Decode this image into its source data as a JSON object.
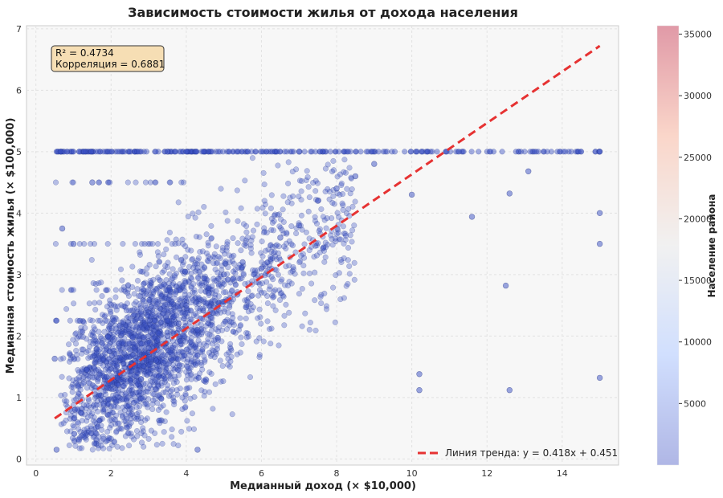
{
  "chart_data": {
    "type": "scatter",
    "title": "Зависимость стоимости жилья от дохода населения",
    "xlabel": "Медианный доход (× $10,000)",
    "ylabel": "Медианная стоимость жилья (× $100,000)",
    "xlim": [
      -0.25,
      15.5
    ],
    "ylim": [
      -0.1,
      7.05
    ],
    "x_ticks": [
      0,
      2,
      4,
      6,
      8,
      10,
      12,
      14
    ],
    "y_ticks": [
      0,
      1,
      2,
      3,
      4,
      5,
      6,
      7
    ],
    "grid": true,
    "stats_box": {
      "r2_text": "R² = 0.4734",
      "corr_text": "Корреляция = 0.6881"
    },
    "trend": {
      "slope": 0.418,
      "intercept": 0.451,
      "x_range": [
        0.5,
        15.0
      ],
      "label": "Линия тренда: y = 0.418x + 0.451",
      "color": "#e63232"
    },
    "legend_position": "bottom-right",
    "colorbar": {
      "label": "Население района",
      "min": 0,
      "max": 35682,
      "ticks": [
        5000,
        10000,
        15000,
        20000,
        25000,
        30000,
        35000
      ],
      "colormap": "coolwarm"
    },
    "point_color": "#3a4fc4",
    "points_approx": [
      [
        1.2,
        0.75
      ],
      [
        1.8,
        0.9
      ],
      [
        2.2,
        1.2
      ],
      [
        2.5,
        1.5
      ],
      [
        2.8,
        1.3
      ],
      [
        3.0,
        1.8
      ],
      [
        3.2,
        1.6
      ],
      [
        3.5,
        2.0
      ],
      [
        3.8,
        2.2
      ],
      [
        4.0,
        2.5
      ],
      [
        4.3,
        2.1
      ],
      [
        4.6,
        2.7
      ],
      [
        5.0,
        3.0
      ],
      [
        5.5,
        3.2
      ],
      [
        6.0,
        3.1
      ],
      [
        6.5,
        3.6
      ],
      [
        7.0,
        3.8
      ],
      [
        7.5,
        4.2
      ],
      [
        8.0,
        4.4
      ],
      [
        8.5,
        4.6
      ],
      [
        9.0,
        4.8
      ],
      [
        10.0,
        4.3
      ],
      [
        10.2,
        1.38
      ],
      [
        10.2,
        1.12
      ],
      [
        11.6,
        3.94
      ],
      [
        12.5,
        2.82
      ],
      [
        12.6,
        1.12
      ],
      [
        12.6,
        4.32
      ],
      [
        13.1,
        4.68
      ],
      [
        15.0,
        4.0
      ],
      [
        15.0,
        3.5
      ],
      [
        15.0,
        1.32
      ],
      [
        15.0,
        5.0
      ],
      [
        3.5,
        5.0
      ],
      [
        7.0,
        5.0
      ],
      [
        0.5,
        1.63
      ],
      [
        0.55,
        0.15
      ],
      [
        0.7,
        3.75
      ],
      [
        1.0,
        3.5
      ],
      [
        1.5,
        4.5
      ],
      [
        4.3,
        0.15
      ]
    ]
  }
}
